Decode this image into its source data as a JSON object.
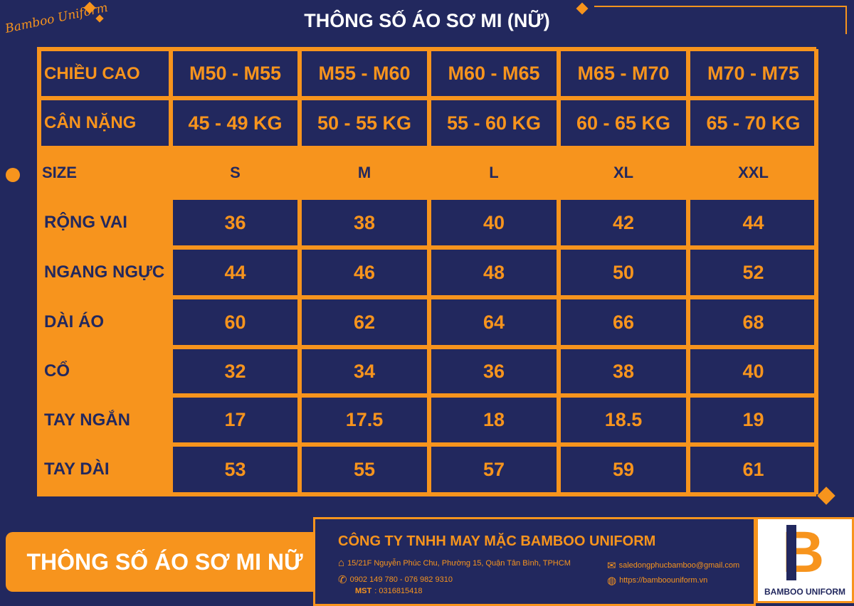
{
  "title": "THÔNG SỐ ÁO SƠ MI (NỮ)",
  "signature": "Bamboo Uniform",
  "table": {
    "height_label": "CHIỀU CAO",
    "heights": [
      "M50 - M55",
      "M55 - M60",
      "M60 - M65",
      "M65 - M70",
      "M70 - M75"
    ],
    "weight_label": "CÂN NẶNG",
    "weights": [
      "45 - 49 KG",
      "50 - 55 KG",
      "55 - 60 KG",
      "60 - 65 KG",
      "65 - 70 KG"
    ],
    "size_label": "SIZE",
    "sizes": [
      "S",
      "M",
      "L",
      "XL",
      "XXL"
    ],
    "rows": [
      {
        "label": "RỘNG VAI",
        "values": [
          "36",
          "38",
          "40",
          "42",
          "44"
        ]
      },
      {
        "label": "NGANG NGỰC",
        "values": [
          "44",
          "46",
          "48",
          "50",
          "52"
        ]
      },
      {
        "label": "DÀI ÁO",
        "values": [
          "60",
          "62",
          "64",
          "66",
          "68"
        ]
      },
      {
        "label": "CỔ",
        "values": [
          "32",
          "34",
          "36",
          "38",
          "40"
        ]
      },
      {
        "label": "TAY NGẮN",
        "values": [
          "17",
          "17.5",
          "18",
          "18.5",
          "19"
        ]
      },
      {
        "label": "TAY DÀI",
        "values": [
          "53",
          "55",
          "57",
          "59",
          "61"
        ]
      }
    ]
  },
  "banner": "THÔNG SỐ ÁO SƠ MI NỮ",
  "footer": {
    "company": "CÔNG TY TNHH MAY MẶC BAMBOO UNIFORM",
    "address": "15/21F Nguyễn Phúc Chu, Phường 15, Quận Tân Bình, TPHCM",
    "phone": "0902 149 780 - 076 982 9310",
    "mst_label": "MST",
    "mst": ": 0316815418",
    "email": "saledongphucbamboo@gmail.com",
    "website": "https://bamboouniform.vn"
  },
  "logo": {
    "letter": "B",
    "text": "BAMBOO UNIFORM"
  },
  "colors": {
    "navy": "#22285e",
    "orange": "#f7941d"
  }
}
